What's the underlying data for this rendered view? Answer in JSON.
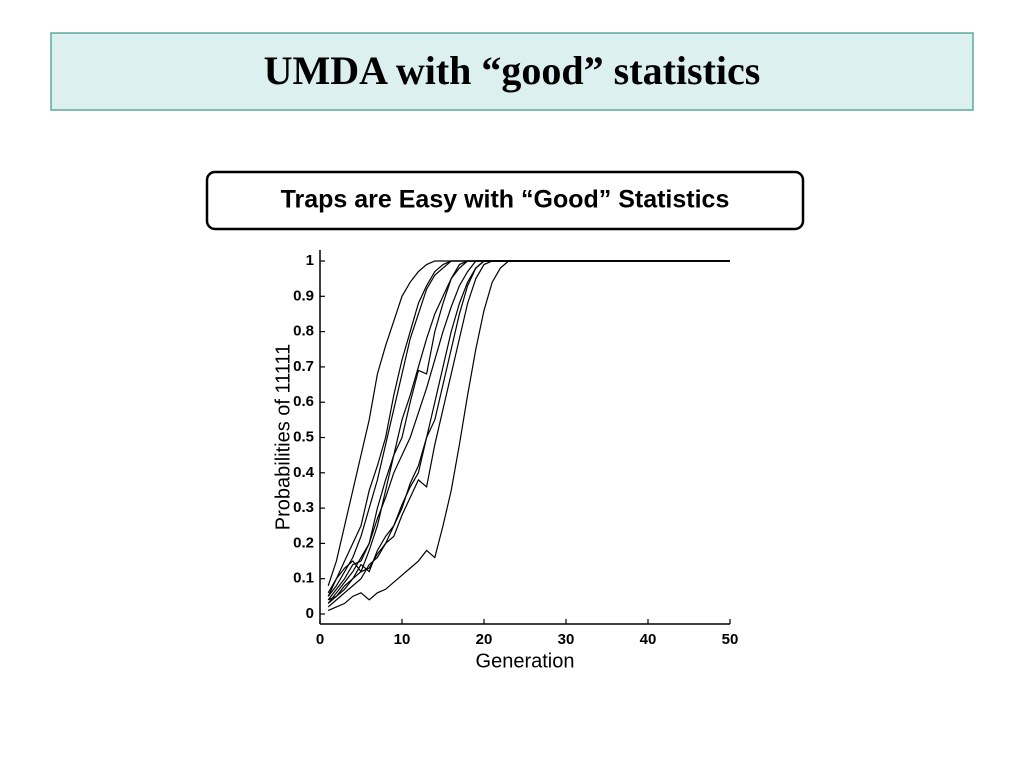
{
  "slide": {
    "title": "UMDA with “good” statistics"
  },
  "chart_data": {
    "type": "line",
    "title": "Traps are Easy with “Good” Statistics",
    "x_label": "Generation",
    "y_label": "Probabilities of 11111",
    "x": [
      1,
      2,
      3,
      4,
      5,
      6,
      7,
      8,
      9,
      10,
      11,
      12,
      13,
      14,
      15,
      16,
      17,
      18,
      19,
      20,
      21,
      22,
      23,
      24,
      50
    ],
    "series": [
      {
        "color": "#000000",
        "values": [
          0.08,
          0.15,
          0.25,
          0.35,
          0.45,
          0.55,
          0.68,
          0.76,
          0.83,
          0.9,
          0.94,
          0.97,
          0.99,
          1,
          1,
          1,
          1,
          1,
          1,
          1,
          1,
          1,
          1,
          1,
          1
        ]
      },
      {
        "color": "#000000",
        "values": [
          0.05,
          0.1,
          0.15,
          0.2,
          0.25,
          0.35,
          0.42,
          0.5,
          0.62,
          0.72,
          0.8,
          0.88,
          0.93,
          0.97,
          0.99,
          1,
          1,
          1,
          1,
          1,
          1,
          1,
          1,
          1,
          1
        ]
      },
      {
        "color": "#000000",
        "values": [
          0.04,
          0.07,
          0.1,
          0.14,
          0.15,
          0.2,
          0.3,
          0.38,
          0.45,
          0.5,
          0.6,
          0.69,
          0.68,
          0.8,
          0.88,
          0.95,
          0.99,
          1,
          1,
          1,
          1,
          1,
          1,
          1,
          1
        ]
      },
      {
        "color": "#000000",
        "values": [
          0.03,
          0.06,
          0.09,
          0.12,
          0.16,
          0.2,
          0.27,
          0.33,
          0.4,
          0.45,
          0.5,
          0.57,
          0.64,
          0.72,
          0.8,
          0.87,
          0.93,
          0.97,
          1,
          1,
          1,
          1,
          1,
          1,
          1
        ]
      },
      {
        "color": "#000000",
        "values": [
          0.03,
          0.05,
          0.07,
          0.1,
          0.14,
          0.12,
          0.18,
          0.22,
          0.25,
          0.3,
          0.37,
          0.42,
          0.5,
          0.55,
          0.65,
          0.75,
          0.85,
          0.93,
          0.98,
          1,
          1,
          1,
          1,
          1,
          1
        ]
      },
      {
        "color": "#000000",
        "values": [
          0.02,
          0.04,
          0.06,
          0.08,
          0.1,
          0.14,
          0.16,
          0.2,
          0.22,
          0.28,
          0.33,
          0.38,
          0.36,
          0.48,
          0.58,
          0.68,
          0.78,
          0.88,
          0.95,
          0.99,
          1,
          1,
          1,
          1,
          1
        ]
      },
      {
        "color": "#000000",
        "values": [
          0.04,
          0.05,
          0.08,
          0.1,
          0.12,
          0.13,
          0.17,
          0.2,
          0.25,
          0.31,
          0.36,
          0.4,
          0.5,
          0.6,
          0.7,
          0.8,
          0.88,
          0.94,
          0.98,
          1,
          1,
          1,
          1,
          1,
          1
        ]
      },
      {
        "color": "#000000",
        "values": [
          0.01,
          0.02,
          0.03,
          0.05,
          0.06,
          0.04,
          0.06,
          0.07,
          0.09,
          0.11,
          0.13,
          0.15,
          0.18,
          0.16,
          0.25,
          0.35,
          0.48,
          0.62,
          0.75,
          0.86,
          0.94,
          0.98,
          1,
          1,
          1
        ]
      },
      {
        "color": "#000000",
        "values": [
          0.06,
          0.1,
          0.13,
          0.15,
          0.12,
          0.18,
          0.25,
          0.35,
          0.45,
          0.55,
          0.62,
          0.7,
          0.78,
          0.85,
          0.9,
          0.95,
          0.98,
          1,
          1,
          1,
          1,
          1,
          1,
          1,
          1
        ]
      },
      {
        "color": "#000000",
        "values": [
          0.05,
          0.08,
          0.12,
          0.16,
          0.22,
          0.3,
          0.38,
          0.48,
          0.58,
          0.68,
          0.78,
          0.85,
          0.92,
          0.96,
          0.98,
          1,
          1,
          1,
          1,
          1,
          1,
          1,
          1,
          1,
          1
        ]
      }
    ],
    "xlim": [
      0,
      50
    ],
    "xticks": [
      0,
      10,
      20,
      30,
      40,
      50
    ],
    "ylim": [
      0,
      1
    ],
    "yticks": [
      0,
      0.1,
      0.2,
      0.3,
      0.4,
      0.5,
      0.6,
      0.7,
      0.8,
      0.9,
      1
    ]
  }
}
